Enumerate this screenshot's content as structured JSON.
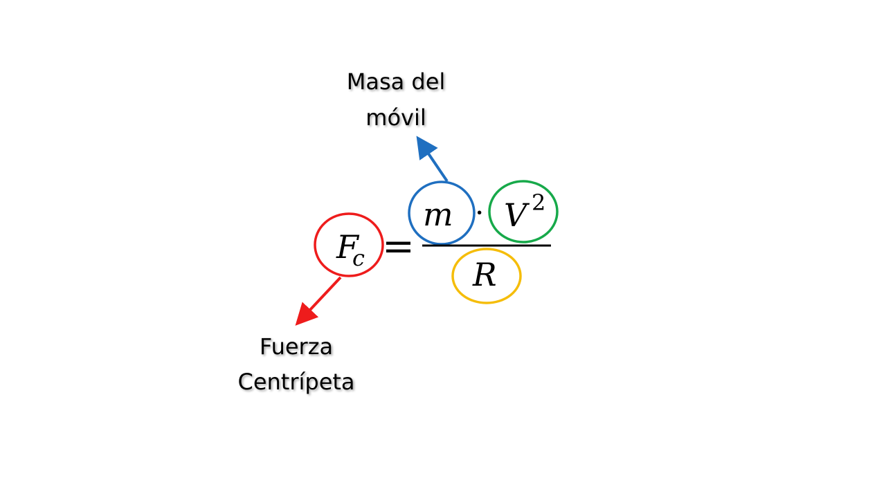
{
  "formula": {
    "lhs_symbol": "F",
    "lhs_subscript": "c",
    "equals": "=",
    "numerator_mass": "m",
    "numerator_dot": "·",
    "numerator_velocity": "V",
    "velocity_exponent": "2",
    "denominator_radius": "R"
  },
  "labels": {
    "mass_line1": "Masa del",
    "mass_line2": "móvil",
    "force_line1": "Fuerza",
    "force_line2": "Centrípeta"
  },
  "colors": {
    "force_circle": "#ee1c1c",
    "mass_circle": "#1f6fc0",
    "velocity_circle": "#17a94a",
    "radius_circle": "#f5bd0a",
    "mass_arrow": "#1f6fc0",
    "force_arrow": "#ee1c1c"
  }
}
